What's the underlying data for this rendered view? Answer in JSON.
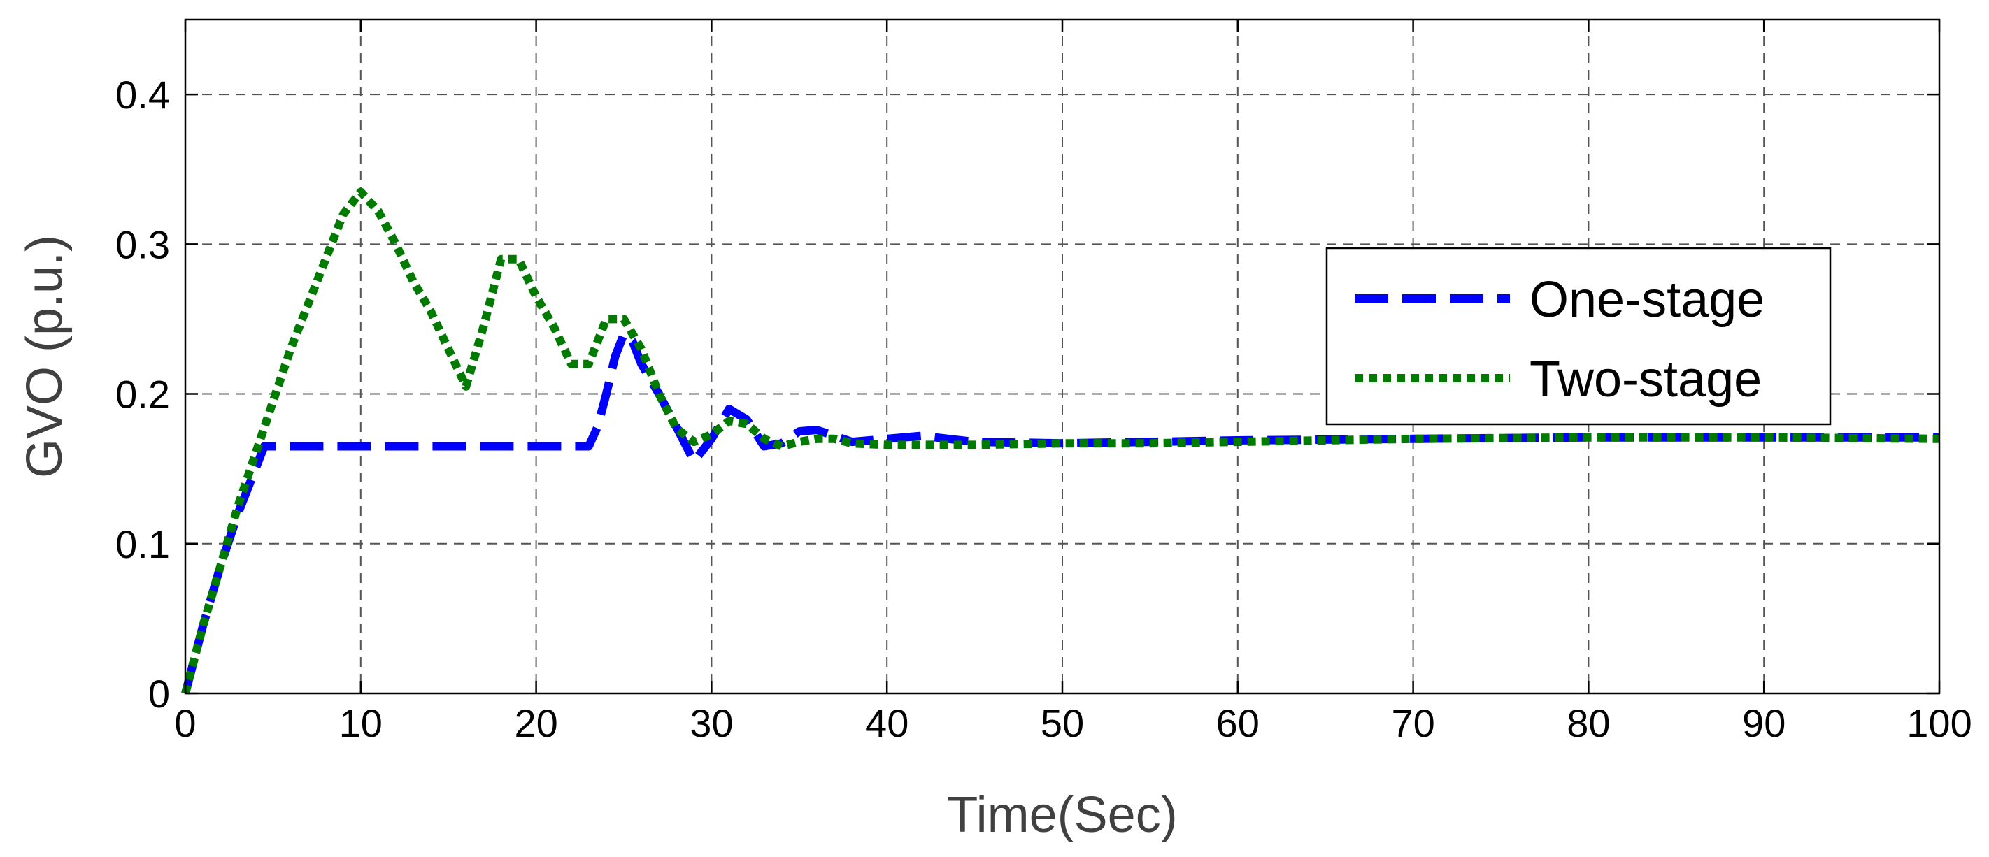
{
  "chart_data": {
    "type": "line",
    "xlabel": "Time(Sec)",
    "ylabel": "GVO (p.u.)",
    "xlim": [
      0,
      100
    ],
    "ylim": [
      0,
      0.45
    ],
    "xticks": [
      0,
      10,
      20,
      30,
      40,
      50,
      60,
      70,
      80,
      90,
      100
    ],
    "yticks": [
      0,
      0.1,
      0.2,
      0.3,
      0.4
    ],
    "xtick_labels": [
      "0",
      "10",
      "20",
      "30",
      "40",
      "50",
      "60",
      "70",
      "80",
      "90",
      "100"
    ],
    "ytick_labels": [
      "0",
      "0.1",
      "0.2",
      "0.3",
      "0.4"
    ],
    "grid": true,
    "legend_position": "right",
    "series": [
      {
        "name": "One-stage",
        "color": "#0000ff",
        "style": "dashed",
        "x": [
          0,
          1,
          2,
          3,
          4.5,
          5,
          10,
          15,
          20,
          23,
          23.5,
          24,
          24.5,
          25,
          25.5,
          26,
          27,
          28,
          29,
          30,
          31,
          32,
          33,
          34,
          35,
          36,
          37,
          38,
          40,
          42,
          45,
          50,
          55,
          60,
          70,
          80,
          90,
          100
        ],
        "y": [
          0,
          0.045,
          0.085,
          0.12,
          0.165,
          0.165,
          0.165,
          0.165,
          0.165,
          0.165,
          0.178,
          0.2,
          0.225,
          0.24,
          0.235,
          0.22,
          0.2,
          0.178,
          0.155,
          0.17,
          0.19,
          0.183,
          0.165,
          0.167,
          0.175,
          0.176,
          0.172,
          0.168,
          0.17,
          0.172,
          0.168,
          0.167,
          0.168,
          0.169,
          0.17,
          0.171,
          0.171,
          0.171
        ]
      },
      {
        "name": "Two-stage",
        "color": "#007a00",
        "style": "dotted",
        "x": [
          0,
          1,
          2,
          3,
          4,
          5,
          6,
          7,
          8,
          9,
          10,
          11,
          12,
          13,
          14,
          15,
          16,
          17,
          18,
          19,
          20,
          21,
          22,
          23,
          24,
          25,
          26,
          27,
          28,
          29,
          30,
          31,
          32,
          33,
          34,
          35,
          36,
          37,
          38,
          40,
          45,
          50,
          55,
          60,
          70,
          80,
          90,
          100
        ],
        "y": [
          0,
          0.045,
          0.085,
          0.125,
          0.16,
          0.195,
          0.23,
          0.26,
          0.29,
          0.32,
          0.335,
          0.322,
          0.3,
          0.275,
          0.255,
          0.23,
          0.205,
          0.245,
          0.29,
          0.29,
          0.265,
          0.245,
          0.22,
          0.22,
          0.25,
          0.25,
          0.23,
          0.2,
          0.177,
          0.168,
          0.173,
          0.182,
          0.18,
          0.17,
          0.165,
          0.168,
          0.17,
          0.17,
          0.167,
          0.166,
          0.166,
          0.167,
          0.167,
          0.168,
          0.17,
          0.171,
          0.171,
          0.17
        ]
      }
    ]
  }
}
